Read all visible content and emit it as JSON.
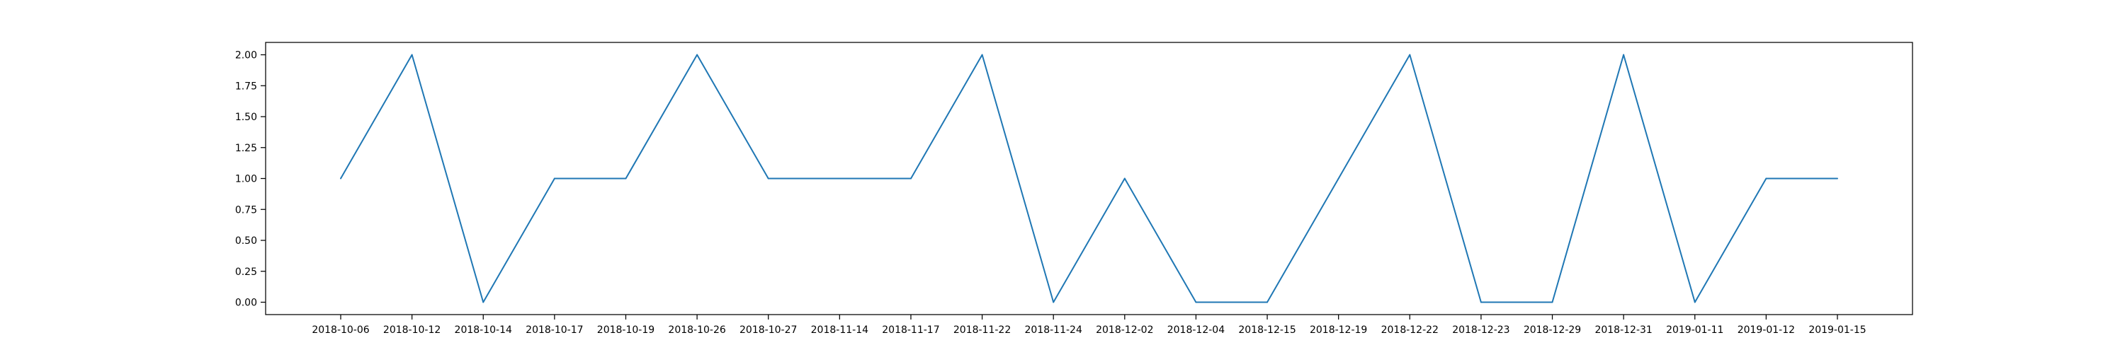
{
  "chart_data": {
    "type": "line",
    "title": "",
    "xlabel": "",
    "ylabel": "",
    "categories": [
      "2018-10-06",
      "2018-10-12",
      "2018-10-14",
      "2018-10-17",
      "2018-10-19",
      "2018-10-26",
      "2018-10-27",
      "2018-11-14",
      "2018-11-17",
      "2018-11-22",
      "2018-11-24",
      "2018-12-02",
      "2018-12-04",
      "2018-12-15",
      "2018-12-19",
      "2018-12-22",
      "2018-12-23",
      "2018-12-29",
      "2018-12-31",
      "2019-01-11",
      "2019-01-12",
      "2019-01-15"
    ],
    "series": [
      {
        "values": [
          1,
          2,
          0,
          1,
          1,
          2,
          1,
          1,
          1,
          2,
          0,
          1,
          0,
          0,
          1,
          2,
          0,
          0,
          2,
          0,
          1,
          1
        ],
        "color": "#1f77b4"
      }
    ],
    "ylim": [
      -0.1,
      2.1
    ],
    "yticks": [
      0,
      0.25,
      0.5,
      0.75,
      1,
      1.25,
      1.5,
      1.75,
      2
    ],
    "ytick_labels": [
      "0.00",
      "0.25",
      "0.50",
      "0.75",
      "1.00",
      "1.25",
      "1.50",
      "1.75",
      "2.00"
    ],
    "grid": false,
    "legend": "none"
  }
}
